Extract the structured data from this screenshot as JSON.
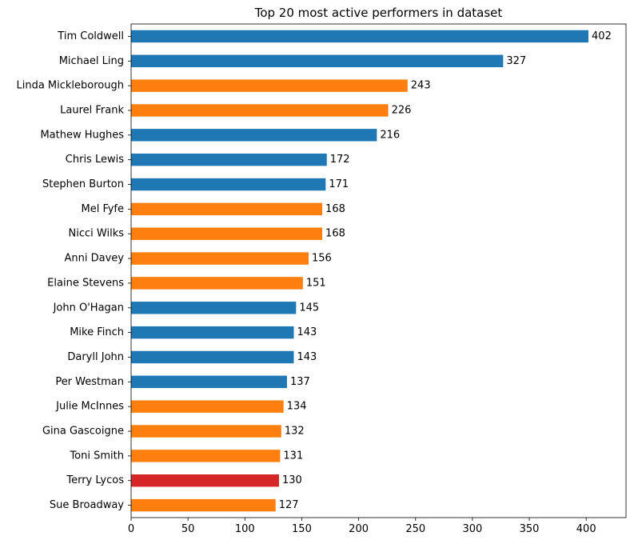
{
  "chart_data": {
    "type": "bar",
    "orientation": "horizontal",
    "title": "Top 20 most active performers in dataset",
    "xlabel": "",
    "ylabel": "",
    "xlim": [
      0,
      435
    ],
    "xticks": [
      0,
      50,
      100,
      150,
      200,
      250,
      300,
      350,
      400
    ],
    "grid": false,
    "legend": "none",
    "categories": [
      "Tim Coldwell",
      "Michael Ling",
      "Linda Mickleborough",
      "Laurel Frank",
      "Mathew Hughes",
      "Chris Lewis",
      "Stephen Burton",
      "Mel Fyfe",
      "Nicci Wilks",
      "Anni Davey",
      "Elaine Stevens",
      "John O'Hagan",
      "Mike Finch",
      "Daryll John",
      "Per Westman",
      "Julie McInnes",
      "Gina Gascoigne",
      "Toni Smith",
      "Terry Lycos",
      "Sue Broadway"
    ],
    "values": [
      402,
      327,
      243,
      226,
      216,
      172,
      171,
      168,
      168,
      156,
      151,
      145,
      143,
      143,
      137,
      134,
      132,
      131,
      130,
      127
    ],
    "bar_colors": [
      "#1f77b4",
      "#1f77b4",
      "#ff7f0e",
      "#ff7f0e",
      "#1f77b4",
      "#1f77b4",
      "#1f77b4",
      "#ff7f0e",
      "#ff7f0e",
      "#ff7f0e",
      "#ff7f0e",
      "#1f77b4",
      "#1f77b4",
      "#1f77b4",
      "#1f77b4",
      "#ff7f0e",
      "#ff7f0e",
      "#ff7f0e",
      "#d62728",
      "#ff7f0e"
    ]
  }
}
